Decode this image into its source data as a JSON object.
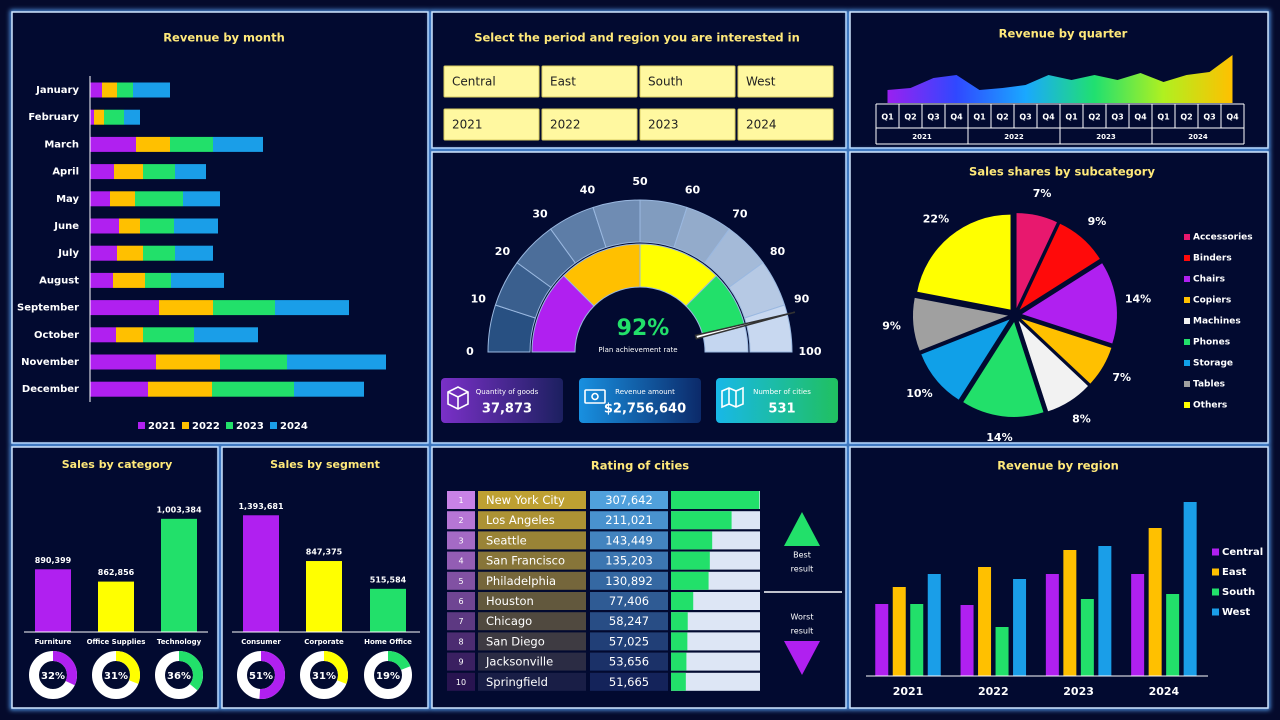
{
  "slicer": {
    "title": "Select the period and region you are interested in",
    "regions": [
      "Central",
      "East",
      "South",
      "West"
    ],
    "years": [
      "2021",
      "2022",
      "2023",
      "2024"
    ]
  },
  "gauge": {
    "range": [
      0,
      100
    ],
    "ticks": [
      0,
      10,
      20,
      30,
      40,
      50,
      60,
      70,
      80,
      90,
      100
    ],
    "value": 92,
    "value_label": "92%",
    "label": "Plan achievement rate",
    "bands": [
      {
        "to": 25,
        "color": "#b020f0"
      },
      {
        "to": 50,
        "color": "#ffc000"
      },
      {
        "to": 75,
        "color": "#ffff00"
      },
      {
        "to": 100,
        "color": "#22e06a"
      }
    ],
    "rest_color": "#c4d6f0"
  },
  "kpis": [
    {
      "label": "Quantity of goods",
      "value": "37,873"
    },
    {
      "label": "Revenue amount",
      "value": "$2,756,640"
    },
    {
      "label": "Number of cities",
      "value": "531"
    }
  ],
  "rating": {
    "title": "Rating of cities",
    "ranks": [
      1,
      2,
      3,
      4,
      5,
      6,
      7,
      8,
      9,
      10
    ],
    "cities": [
      "New York City",
      "Los Angeles",
      "Seattle",
      "San Francisco",
      "Philadelphia",
      "Houston",
      "Chicago",
      "San Diego",
      "Jacksonville",
      "Springfield"
    ],
    "values": [
      307642,
      211021,
      143449,
      135203,
      130892,
      77406,
      58247,
      57025,
      53656,
      51665
    ],
    "value_labels": [
      "307,642",
      "211,021",
      "143,449",
      "135,203",
      "130,892",
      "77,406",
      "58,247",
      "57,025",
      "53,656",
      "51,665"
    ],
    "xlim": [
      0,
      310000
    ],
    "color": "#22e06a",
    "best": [
      "Best",
      "result"
    ],
    "worst": [
      "Worst",
      "result"
    ]
  },
  "chart_data": [
    {
      "type": "bar",
      "orientation": "horizontal",
      "stacked": true,
      "title": "Revenue by month",
      "categories": [
        "January",
        "February",
        "March",
        "April",
        "May",
        "June",
        "July",
        "August",
        "September",
        "October",
        "November",
        "December"
      ],
      "series": [
        {
          "name": "2021",
          "color": "#b020f0",
          "values": [
            12,
            4,
            46,
            24,
            20,
            29,
            27,
            23,
            69,
            26,
            66,
            58
          ]
        },
        {
          "name": "2022",
          "color": "#ffc000",
          "values": [
            15,
            10,
            34,
            29,
            25,
            21,
            26,
            32,
            54,
            27,
            64,
            64
          ]
        },
        {
          "name": "2023",
          "color": "#22e06a",
          "values": [
            16,
            20,
            43,
            32,
            48,
            34,
            32,
            26,
            62,
            51,
            67,
            82
          ]
        },
        {
          "name": "2024",
          "color": "#1a9ee8",
          "values": [
            37,
            16,
            50,
            31,
            37,
            44,
            38,
            53,
            74,
            64,
            99,
            70
          ]
        }
      ],
      "xlim": [
        0,
        300
      ],
      "legend": "bottom"
    },
    {
      "type": "area",
      "title": "Revenue by quarter",
      "categories": [
        "Q1",
        "Q2",
        "Q3",
        "Q4",
        "Q1",
        "Q2",
        "Q3",
        "Q4",
        "Q1",
        "Q2",
        "Q3",
        "Q4",
        "Q1",
        "Q2",
        "Q3",
        "Q4"
      ],
      "groups": [
        "2021",
        "2022",
        "2023",
        "2024"
      ],
      "values": [
        13,
        15,
        25,
        28,
        13,
        15,
        18,
        28,
        23,
        28,
        23,
        30,
        21,
        28,
        31,
        48
      ],
      "ylim": [
        0,
        50
      ]
    },
    {
      "type": "pie",
      "title": "Sales shares by subcategory",
      "categories": [
        "Accessories",
        "Binders",
        "Chairs",
        "Copiers",
        "Machines",
        "Phones",
        "Storage",
        "Tables",
        "Others"
      ],
      "values": [
        7,
        9,
        14,
        7,
        8,
        14,
        10,
        9,
        22
      ],
      "value_labels": [
        "7%",
        "9%",
        "14%",
        "7%",
        "8%",
        "14%",
        "10%",
        "9%",
        "22%"
      ],
      "colors": [
        "#e8186e",
        "#ff0a0a",
        "#b020f0",
        "#ffc000",
        "#f2f2f2",
        "#22e06a",
        "#10a0e8",
        "#a0a0a0",
        "#ffff00"
      ],
      "legend": "right"
    },
    {
      "type": "bar",
      "title": "Sales by category",
      "categories": [
        "Furniture",
        "Office Supplies",
        "Technology"
      ],
      "values": [
        890399,
        862856,
        1003384
      ],
      "value_labels": [
        "890,399",
        "862,856",
        "1,003,384"
      ],
      "colors": [
        "#b020f0",
        "#ffff00",
        "#22e06a"
      ],
      "ylim": [
        750000,
        1050000
      ],
      "shares": [
        32,
        31,
        36
      ],
      "share_labels": [
        "32%",
        "31%",
        "36%"
      ],
      "share_lim": [
        0,
        100
      ]
    },
    {
      "type": "bar",
      "title": "Sales by segment",
      "categories": [
        "Consumer",
        "Corporate",
        "Home Office"
      ],
      "values": [
        1393681,
        847375,
        515584
      ],
      "value_labels": [
        "1,393,681",
        "847,375",
        "515,584"
      ],
      "colors": [
        "#b020f0",
        "#ffff00",
        "#22e06a"
      ],
      "ylim": [
        0,
        1600000
      ],
      "shares": [
        51,
        31,
        19
      ],
      "share_labels": [
        "51%",
        "31%",
        "19%"
      ],
      "share_lim": [
        0,
        100
      ]
    },
    {
      "type": "bar",
      "title": "Revenue by region",
      "categories": [
        "2021",
        "2022",
        "2023",
        "2024"
      ],
      "series": [
        {
          "name": "Central",
          "color": "#b020f0",
          "values": [
            72,
            71,
            102,
            102
          ]
        },
        {
          "name": "East",
          "color": "#ffc000",
          "values": [
            89,
            109,
            126,
            148
          ]
        },
        {
          "name": "South",
          "color": "#22e06a",
          "values": [
            72,
            49,
            77,
            82
          ]
        },
        {
          "name": "West",
          "color": "#1a9ee8",
          "values": [
            102,
            97,
            130,
            174
          ]
        }
      ],
      "ylim": [
        0,
        180
      ],
      "legend": "right"
    }
  ]
}
